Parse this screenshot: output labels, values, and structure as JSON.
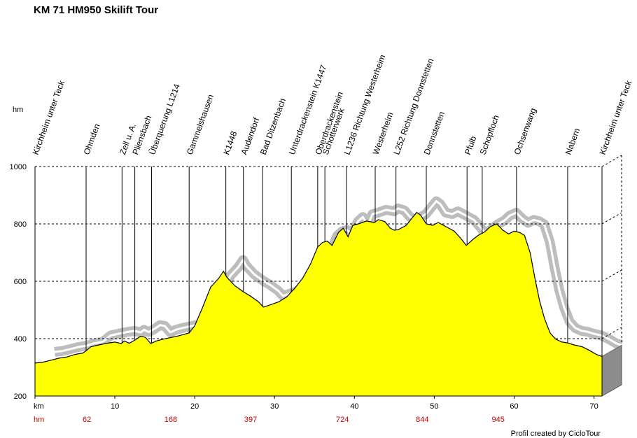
{
  "chart_data": {
    "type": "area",
    "title": "KM 71 HM950 Skilift Tour",
    "ylabel": "hm",
    "xlabel": "km",
    "hm_label": "hm",
    "credit": "Profil created by CicloTour",
    "xlim": [
      0,
      71
    ],
    "ylim": [
      200,
      1000
    ],
    "x_ticks": [
      0,
      10,
      20,
      30,
      40,
      50,
      60,
      70
    ],
    "x_tick_labels": [
      "",
      "10",
      "20",
      "30",
      "40",
      "50",
      "60",
      "70"
    ],
    "y_ticks": [
      200,
      400,
      600,
      800,
      1000
    ],
    "grid": "dashed",
    "cumulative_hm": [
      {
        "km": 6.5,
        "value": "62"
      },
      {
        "km": 17,
        "value": "168"
      },
      {
        "km": 27,
        "value": "397"
      },
      {
        "km": 38.5,
        "value": "724"
      },
      {
        "km": 48.5,
        "value": "844"
      },
      {
        "km": 58,
        "value": "945"
      }
    ],
    "waypoints": [
      {
        "km": 0,
        "name": "Kirchheim unter Teck"
      },
      {
        "km": 6.4,
        "name": "Ohmden"
      },
      {
        "km": 10.9,
        "name": "Zell u. A."
      },
      {
        "km": 12.5,
        "name": "Pliensbach"
      },
      {
        "km": 14.6,
        "name": "Überquerung L1214"
      },
      {
        "km": 19.3,
        "name": "Gammelshausen"
      },
      {
        "km": 23.9,
        "name": "K1448"
      },
      {
        "km": 26.1,
        "name": "Audendorf"
      },
      {
        "km": 28.5,
        "name": "Bad Ditzenbach"
      },
      {
        "km": 32.1,
        "name": "Unterdrackenstein K1447"
      },
      {
        "km": 35.4,
        "name": "Oberdrackenstein"
      },
      {
        "km": 36.3,
        "name": "Schotterwerk"
      },
      {
        "km": 39.0,
        "name": "L1236 Richtung Westerheim"
      },
      {
        "km": 42.6,
        "name": "Westerheim"
      },
      {
        "km": 45.2,
        "name": "L252 Richtung Donnstetten"
      },
      {
        "km": 49.0,
        "name": "Donnstetten"
      },
      {
        "km": 54.1,
        "name": "Pfulb"
      },
      {
        "km": 56.0,
        "name": "Schopfloch"
      },
      {
        "km": 60.3,
        "name": "Ochsenwang"
      },
      {
        "km": 66.7,
        "name": "Nabern"
      },
      {
        "km": 71.0,
        "name": "Kirchheim unter Teck"
      }
    ],
    "profile": [
      [
        0,
        315
      ],
      [
        1,
        318
      ],
      [
        2,
        325
      ],
      [
        3,
        332
      ],
      [
        4,
        336
      ],
      [
        5,
        345
      ],
      [
        6,
        350
      ],
      [
        6.5,
        360
      ],
      [
        7,
        372
      ],
      [
        8,
        378
      ],
      [
        9,
        384
      ],
      [
        10,
        388
      ],
      [
        10.8,
        383
      ],
      [
        11.2,
        392
      ],
      [
        11.8,
        384
      ],
      [
        12.5,
        395
      ],
      [
        13.2,
        408
      ],
      [
        13.8,
        405
      ],
      [
        14.5,
        383
      ],
      [
        15.2,
        392
      ],
      [
        16,
        398
      ],
      [
        17,
        404
      ],
      [
        18,
        410
      ],
      [
        19.3,
        420
      ],
      [
        20,
        445
      ],
      [
        21,
        510
      ],
      [
        22,
        580
      ],
      [
        23,
        610
      ],
      [
        23.6,
        635
      ],
      [
        24,
        615
      ],
      [
        25,
        585
      ],
      [
        26,
        565
      ],
      [
        27,
        548
      ],
      [
        28,
        528
      ],
      [
        28.6,
        510
      ],
      [
        29.5,
        518
      ],
      [
        30.5,
        528
      ],
      [
        31.5,
        545
      ],
      [
        32.5,
        575
      ],
      [
        33.5,
        610
      ],
      [
        34.5,
        660
      ],
      [
        35.4,
        720
      ],
      [
        36,
        735
      ],
      [
        36.6,
        740
      ],
      [
        37.2,
        725
      ],
      [
        38,
        770
      ],
      [
        38.6,
        785
      ],
      [
        39.2,
        755
      ],
      [
        39.8,
        795
      ],
      [
        40.5,
        800
      ],
      [
        41.5,
        810
      ],
      [
        42.5,
        805
      ],
      [
        43,
        815
      ],
      [
        43.8,
        808
      ],
      [
        44.5,
        785
      ],
      [
        45,
        778
      ],
      [
        45.5,
        780
      ],
      [
        46.5,
        795
      ],
      [
        47.2,
        820
      ],
      [
        47.8,
        840
      ],
      [
        48.3,
        830
      ],
      [
        49,
        800
      ],
      [
        49.8,
        795
      ],
      [
        50.5,
        805
      ],
      [
        51.5,
        790
      ],
      [
        52.5,
        775
      ],
      [
        53.3,
        750
      ],
      [
        54,
        725
      ],
      [
        54.8,
        745
      ],
      [
        55.5,
        760
      ],
      [
        56.3,
        772
      ],
      [
        57,
        790
      ],
      [
        57.8,
        800
      ],
      [
        58.6,
        778
      ],
      [
        59.3,
        765
      ],
      [
        60,
        775
      ],
      [
        60.7,
        770
      ],
      [
        61.3,
        760
      ],
      [
        62,
        700
      ],
      [
        62.6,
        610
      ],
      [
        63.2,
        530
      ],
      [
        63.8,
        470
      ],
      [
        64.5,
        420
      ],
      [
        65.2,
        398
      ],
      [
        66,
        388
      ],
      [
        66.7,
        385
      ],
      [
        67.5,
        378
      ],
      [
        68.5,
        372
      ],
      [
        69.5,
        358
      ],
      [
        70.3,
        345
      ],
      [
        71,
        338
      ]
    ]
  }
}
